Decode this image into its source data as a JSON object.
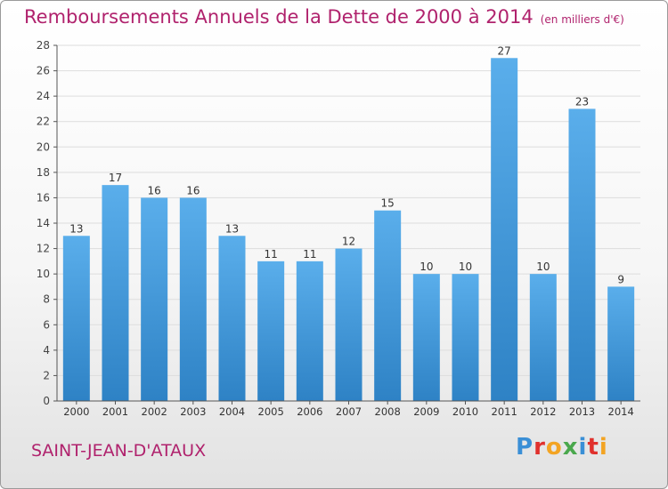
{
  "title": "Remboursements Annuels de la Dette de 2000 à 2014",
  "unit": "(en milliers d'€)",
  "place": "SAINT-JEAN-D'ATAUX",
  "logo": {
    "text": "Proxiti",
    "letters": [
      {
        "ch": "P",
        "color": "#3a8fd6"
      },
      {
        "ch": "r",
        "color": "#e0312d"
      },
      {
        "ch": "o",
        "color": "#f3a423"
      },
      {
        "ch": "x",
        "color": "#4aa84d"
      },
      {
        "ch": "i",
        "color": "#3a8fd6"
      },
      {
        "ch": "t",
        "color": "#e0312d"
      },
      {
        "ch": "i",
        "color": "#f3a423"
      }
    ]
  },
  "colors": {
    "accent": "#b0226d",
    "bar_top": "#5aaeeb",
    "bar_bottom": "#2e82c5",
    "grid": "#dddddd"
  },
  "chart_data": {
    "type": "bar",
    "categories": [
      "2000",
      "2001",
      "2002",
      "2003",
      "2004",
      "2005",
      "2006",
      "2007",
      "2008",
      "2009",
      "2010",
      "2011",
      "2012",
      "2013",
      "2014"
    ],
    "values": [
      13,
      17,
      16,
      16,
      13,
      11,
      11,
      12,
      15,
      10,
      10,
      27,
      10,
      23,
      9
    ],
    "ylim": [
      0,
      28
    ],
    "yticks": [
      0,
      2,
      4,
      6,
      8,
      10,
      12,
      14,
      16,
      18,
      20,
      22,
      24,
      26,
      28
    ],
    "grid": true,
    "legend": "none"
  }
}
